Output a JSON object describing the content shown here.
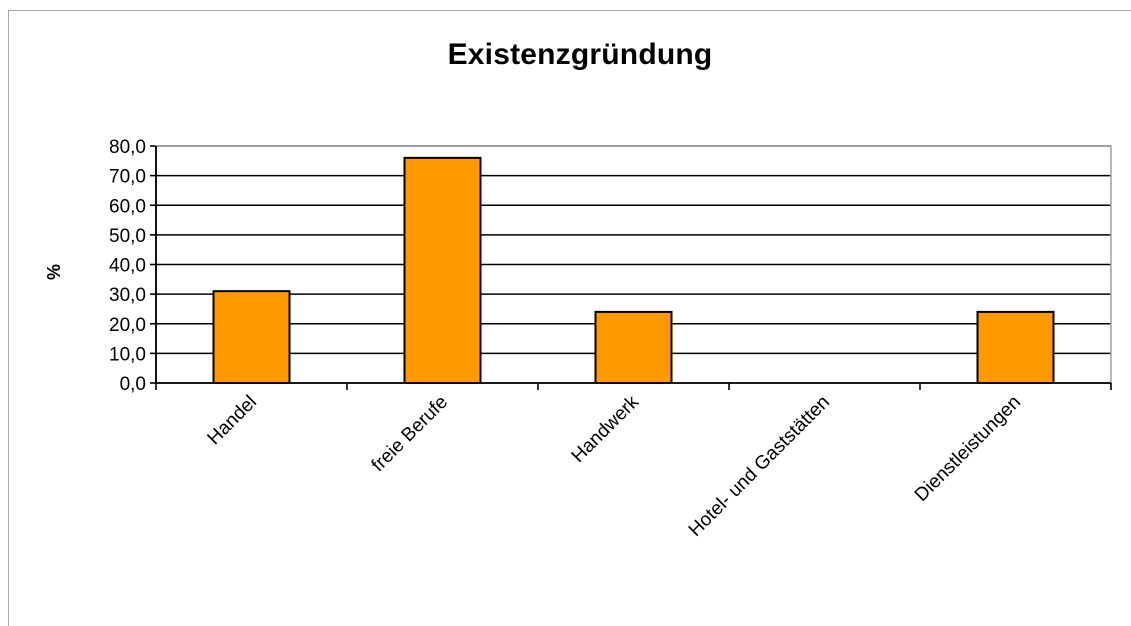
{
  "chart_data": {
    "type": "bar",
    "title": "Existenzgründung",
    "xlabel": "",
    "ylabel": "%",
    "categories": [
      "Handel",
      "freie Berufe",
      "Handwerk",
      "Hotel- und Gaststätten",
      "Dienstleistungen"
    ],
    "values": [
      31.0,
      76.0,
      24.0,
      0.0,
      24.0
    ],
    "ylim": [
      0,
      80
    ],
    "yticks": [
      "0,0",
      "10,0",
      "20,0",
      "30,0",
      "40,0",
      "50,0",
      "60,0",
      "70,0",
      "80,0"
    ],
    "grid": true,
    "legend": "none",
    "colors": {
      "bar_fill": "#ff9900",
      "bar_stroke": "#000000",
      "gridline": "#000000",
      "frame": "#a6a6a6"
    }
  }
}
